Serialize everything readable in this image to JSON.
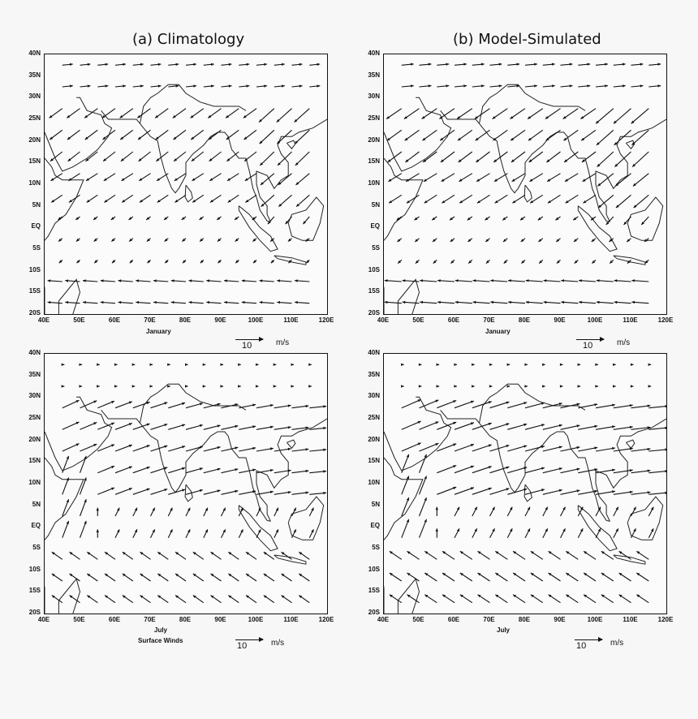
{
  "titles": {
    "left": "(a) Climatology",
    "right": "(b) Model-Simulated"
  },
  "lat_labels": [
    "40N",
    "35N",
    "30N",
    "25N",
    "20N",
    "15N",
    "10N",
    "5N",
    "EQ",
    "5S",
    "10S",
    "15S",
    "20S"
  ],
  "lon_labels": [
    "40E",
    "50E",
    "60E",
    "70E",
    "80E",
    "90E",
    "100E",
    "110E",
    "120E"
  ],
  "panels": [
    {
      "id": "a-january",
      "month": "January",
      "field": "climatology",
      "footer": ""
    },
    {
      "id": "b-january",
      "month": "January",
      "field": "model",
      "footer": ""
    },
    {
      "id": "a-july",
      "month": "July",
      "field": "climatology",
      "footer": "Surface Winds"
    },
    {
      "id": "b-july",
      "month": "July",
      "field": "model",
      "footer": ""
    }
  ],
  "reference": {
    "value": "10",
    "unit": "m/s"
  },
  "map_extent": {
    "lon": [
      40,
      120
    ],
    "lat": [
      -20,
      40
    ]
  },
  "colors": {
    "ink": "#111111",
    "paper": "#fbfbfb"
  }
}
